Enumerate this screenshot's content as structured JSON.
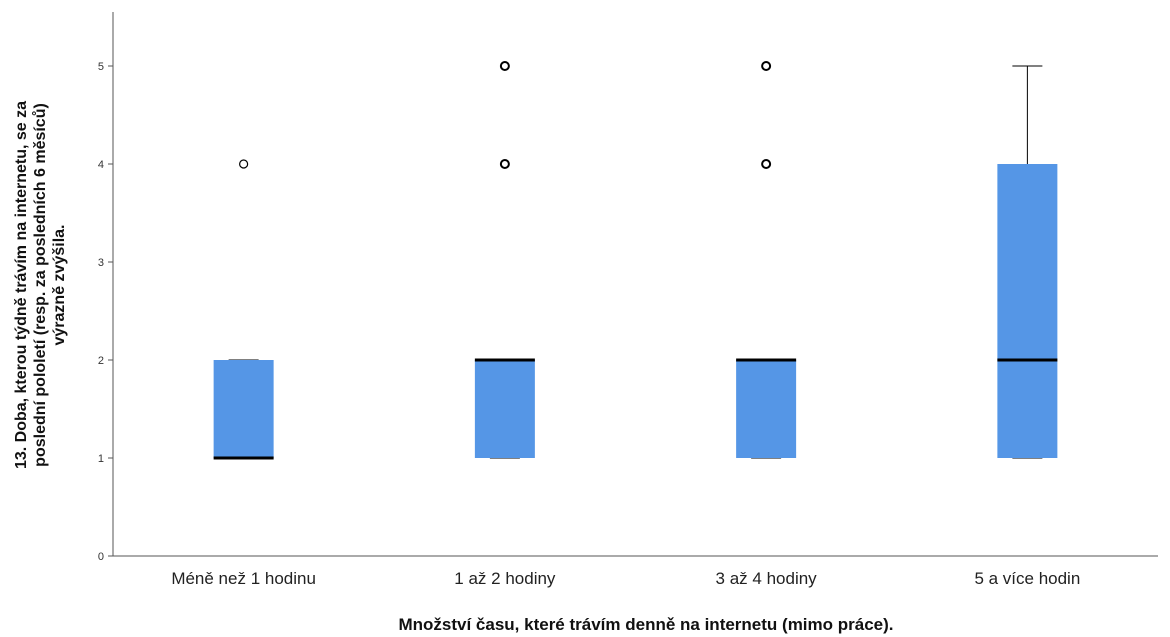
{
  "chart_data": {
    "type": "boxplot",
    "xlabel": "Množství času, které trávím denně na internetu (mimo práce).",
    "ylabel_lines": [
      "13. Doba, kterou týdně trávím na internetu, se za",
      "poslední pololetí (resp. za posledních 6 měsíců)",
      "výrazně zvýšila."
    ],
    "ylim": [
      0,
      5.5
    ],
    "yticks": [
      "0",
      "1",
      "2",
      "3",
      "4",
      "5"
    ],
    "categories": [
      "Méně než 1 hodinu",
      "1 až 2 hodiny",
      "3 až 4 hodiny",
      "5 a více hodin"
    ],
    "boxes": [
      {
        "q1": 1,
        "median": 1,
        "q3": 2,
        "whisker_low": 1,
        "whisker_high": 2,
        "outliers": [
          4
        ]
      },
      {
        "q1": 1,
        "median": 2,
        "q3": 2,
        "whisker_low": 1,
        "whisker_high": 2,
        "outliers": [
          4,
          5
        ]
      },
      {
        "q1": 1,
        "median": 2,
        "q3": 2,
        "whisker_low": 1,
        "whisker_high": 2,
        "outliers": [
          4,
          5
        ]
      },
      {
        "q1": 1,
        "median": 2,
        "q3": 4,
        "whisker_low": 1,
        "whisker_high": 5,
        "outliers": []
      }
    ],
    "box_color": "#5596e6",
    "grid": false,
    "legend": "none"
  }
}
